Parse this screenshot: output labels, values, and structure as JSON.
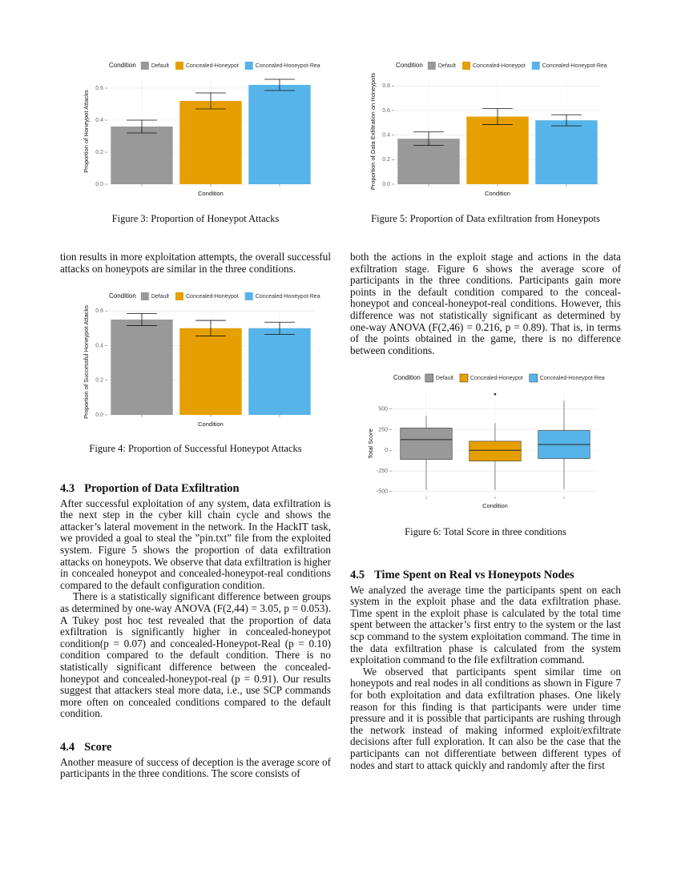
{
  "chart_data": [
    {
      "type": "bar",
      "legend_title": "Condition",
      "xlabel": "Condition",
      "ylabel": "Proportion of Honeypot Attacks",
      "categories": [
        "Default",
        "Concealed-Honeypot",
        "Concealed-Honeypot-Real"
      ],
      "colors": [
        "#999999",
        "#E69F00",
        "#56B4E9"
      ],
      "values": [
        0.36,
        0.52,
        0.62
      ],
      "errors": [
        0.04,
        0.05,
        0.035
      ],
      "ylim": [
        0,
        0.66
      ],
      "yticks": [
        {
          "value": 0,
          "label": "0.0"
        },
        0.2,
        0.4,
        0.6
      ],
      "grid": true,
      "caption": "Figure 3: Proportion of Honeypot Attacks"
    },
    {
      "type": "bar",
      "legend_title": "Condition",
      "xlabel": "Condition",
      "ylabel": "Proportion of Data Exfiltration on Honeypots",
      "categories": [
        "Default",
        "Concealed-Honeypot",
        "Concealed-Honeypot-Real"
      ],
      "colors": [
        "#999999",
        "#E69F00",
        "#56B4E9"
      ],
      "values": [
        0.37,
        0.55,
        0.52
      ],
      "errors": [
        0.055,
        0.065,
        0.045
      ],
      "ylim": [
        0,
        0.86
      ],
      "yticks": [
        {
          "value": 0,
          "label": "0.0"
        },
        0.2,
        0.4,
        0.6,
        0.8
      ],
      "grid": true,
      "caption": "Figure 5: Proportion of Data exfiltration from Honeypots"
    },
    {
      "type": "bar",
      "legend_title": "Condition",
      "xlabel": "Condition",
      "ylabel": "Proportion of Successful Honeypot Attacks",
      "categories": [
        "Default",
        "Concealed-Honeypot",
        "Concealed-Honeypot-Real"
      ],
      "colors": [
        "#999999",
        "#E69F00",
        "#56B4E9"
      ],
      "values": [
        0.55,
        0.5,
        0.5
      ],
      "errors": [
        0.035,
        0.045,
        0.035
      ],
      "ylim": [
        0,
        0.61
      ],
      "yticks": [
        {
          "value": 0,
          "label": "0.0"
        },
        0.2,
        0.4,
        0.6
      ],
      "grid": true,
      "caption": "Figure 4: Proportion of Successful Honeypot Attacks"
    },
    {
      "type": "box",
      "legend_title": "Condition",
      "xlabel": "Condition",
      "ylabel": "Total Score",
      "categories": [
        "Default",
        "Concealed-Honeypot",
        "Concealed-Honeypot-Real"
      ],
      "colors": [
        "#999999",
        "#E69F00",
        "#56B4E9"
      ],
      "boxes": [
        {
          "min": -480,
          "q1": -110,
          "median": 130,
          "q3": 270,
          "max": 420,
          "outliers": []
        },
        {
          "min": -480,
          "q1": -130,
          "median": 0,
          "q3": 110,
          "max": 330,
          "outliers": [
            680
          ]
        },
        {
          "min": -470,
          "q1": -100,
          "median": 70,
          "q3": 240,
          "max": 600,
          "outliers": []
        }
      ],
      "ylim": [
        -560,
        720
      ],
      "yticks": [
        -500,
        -250,
        0,
        250,
        500
      ],
      "grid": true,
      "caption": "Figure 6: Total Score in three conditions"
    }
  ],
  "left": [
    {
      "paragraphs": [
        "tion results in more exploitation attempts, the overall successful attacks on honeypots are similar in the three conditions."
      ]
    },
    {
      "number": "4.3",
      "title": "Proportion of Data Exfiltration",
      "paragraphs": [
        "After successful exploitation of any system, data exfiltration is the next step in the cyber kill chain cycle and shows the attacker’s lateral movement in the network. In the HackIT task, we provided a goal to steal the ”pin.txt” file from the exploited system. Figure 5 shows the proportion of data exfiltration attacks on honeypots. We observe that data exfiltration is higher in concealed honeypot and concealed-honeypot-real conditions compared to the default configuration condition.",
        "There is a statistically significant difference between groups as determined by one-way ANOVA (F(2,44) = 3.05, p = 0.053). A Tukey post hoc test revealed that the proportion of data exfiltration is significantly higher in concealed-honeypot condition(p = 0.07) and concealed-Honeypot-Real (p = 0.10) condition compared to the default condition. There is no statistically significant difference between the concealed-honeypot and concealed-honeypot-real (p = 0.91). Our results suggest that attackers steal more data, i.e., use SCP commands more often on concealed conditions compared to the default condition."
      ]
    },
    {
      "number": "4.4",
      "title": "Score",
      "paragraphs": [
        "Another measure of success of deception is the average score of participants in the three conditions. The score consists of"
      ]
    }
  ],
  "right": [
    {
      "paragraphs": [
        "both the actions in the exploit stage and actions in the data exfiltration stage. Figure 6 shows the average score of participants in the three conditions. Participants gain more points in the default condition compared to the conceal-honeypot and conceal-honeypot-real conditions. However, this difference was not statistically significant as determined by one-way ANOVA (F(2,46) = 0.216, p = 0.89). That is, in terms of the points obtained in the game, there is no difference between conditions."
      ]
    },
    {
      "number": "4.5",
      "title": "Time Spent on Real vs Honeypots Nodes",
      "paragraphs": [
        "We analyzed the average time the participants spent on each system in the exploit phase and the data exfiltration phase. Time spent in the exploit phase is calculated by the total time spent between the attacker’s first entry to the system or the last scp command to the system exploitation command. The time in the data exfiltration phase is calculated from the system exploitation command to the file exfiltration command.",
        "We observed that participants spent similar time on honeypots and real nodes in all conditions as shown in Figure 7 for both exploitation and data exfiltration phases. One likely reason for this finding is that participants were under time pressure and it is possible that participants are rushing through the network instead of making informed exploit/exfiltrate decisions after full exploration. It can also be the case that the participants can not differentiate between different types of nodes and start to attack quickly and randomly after the first"
      ]
    }
  ]
}
